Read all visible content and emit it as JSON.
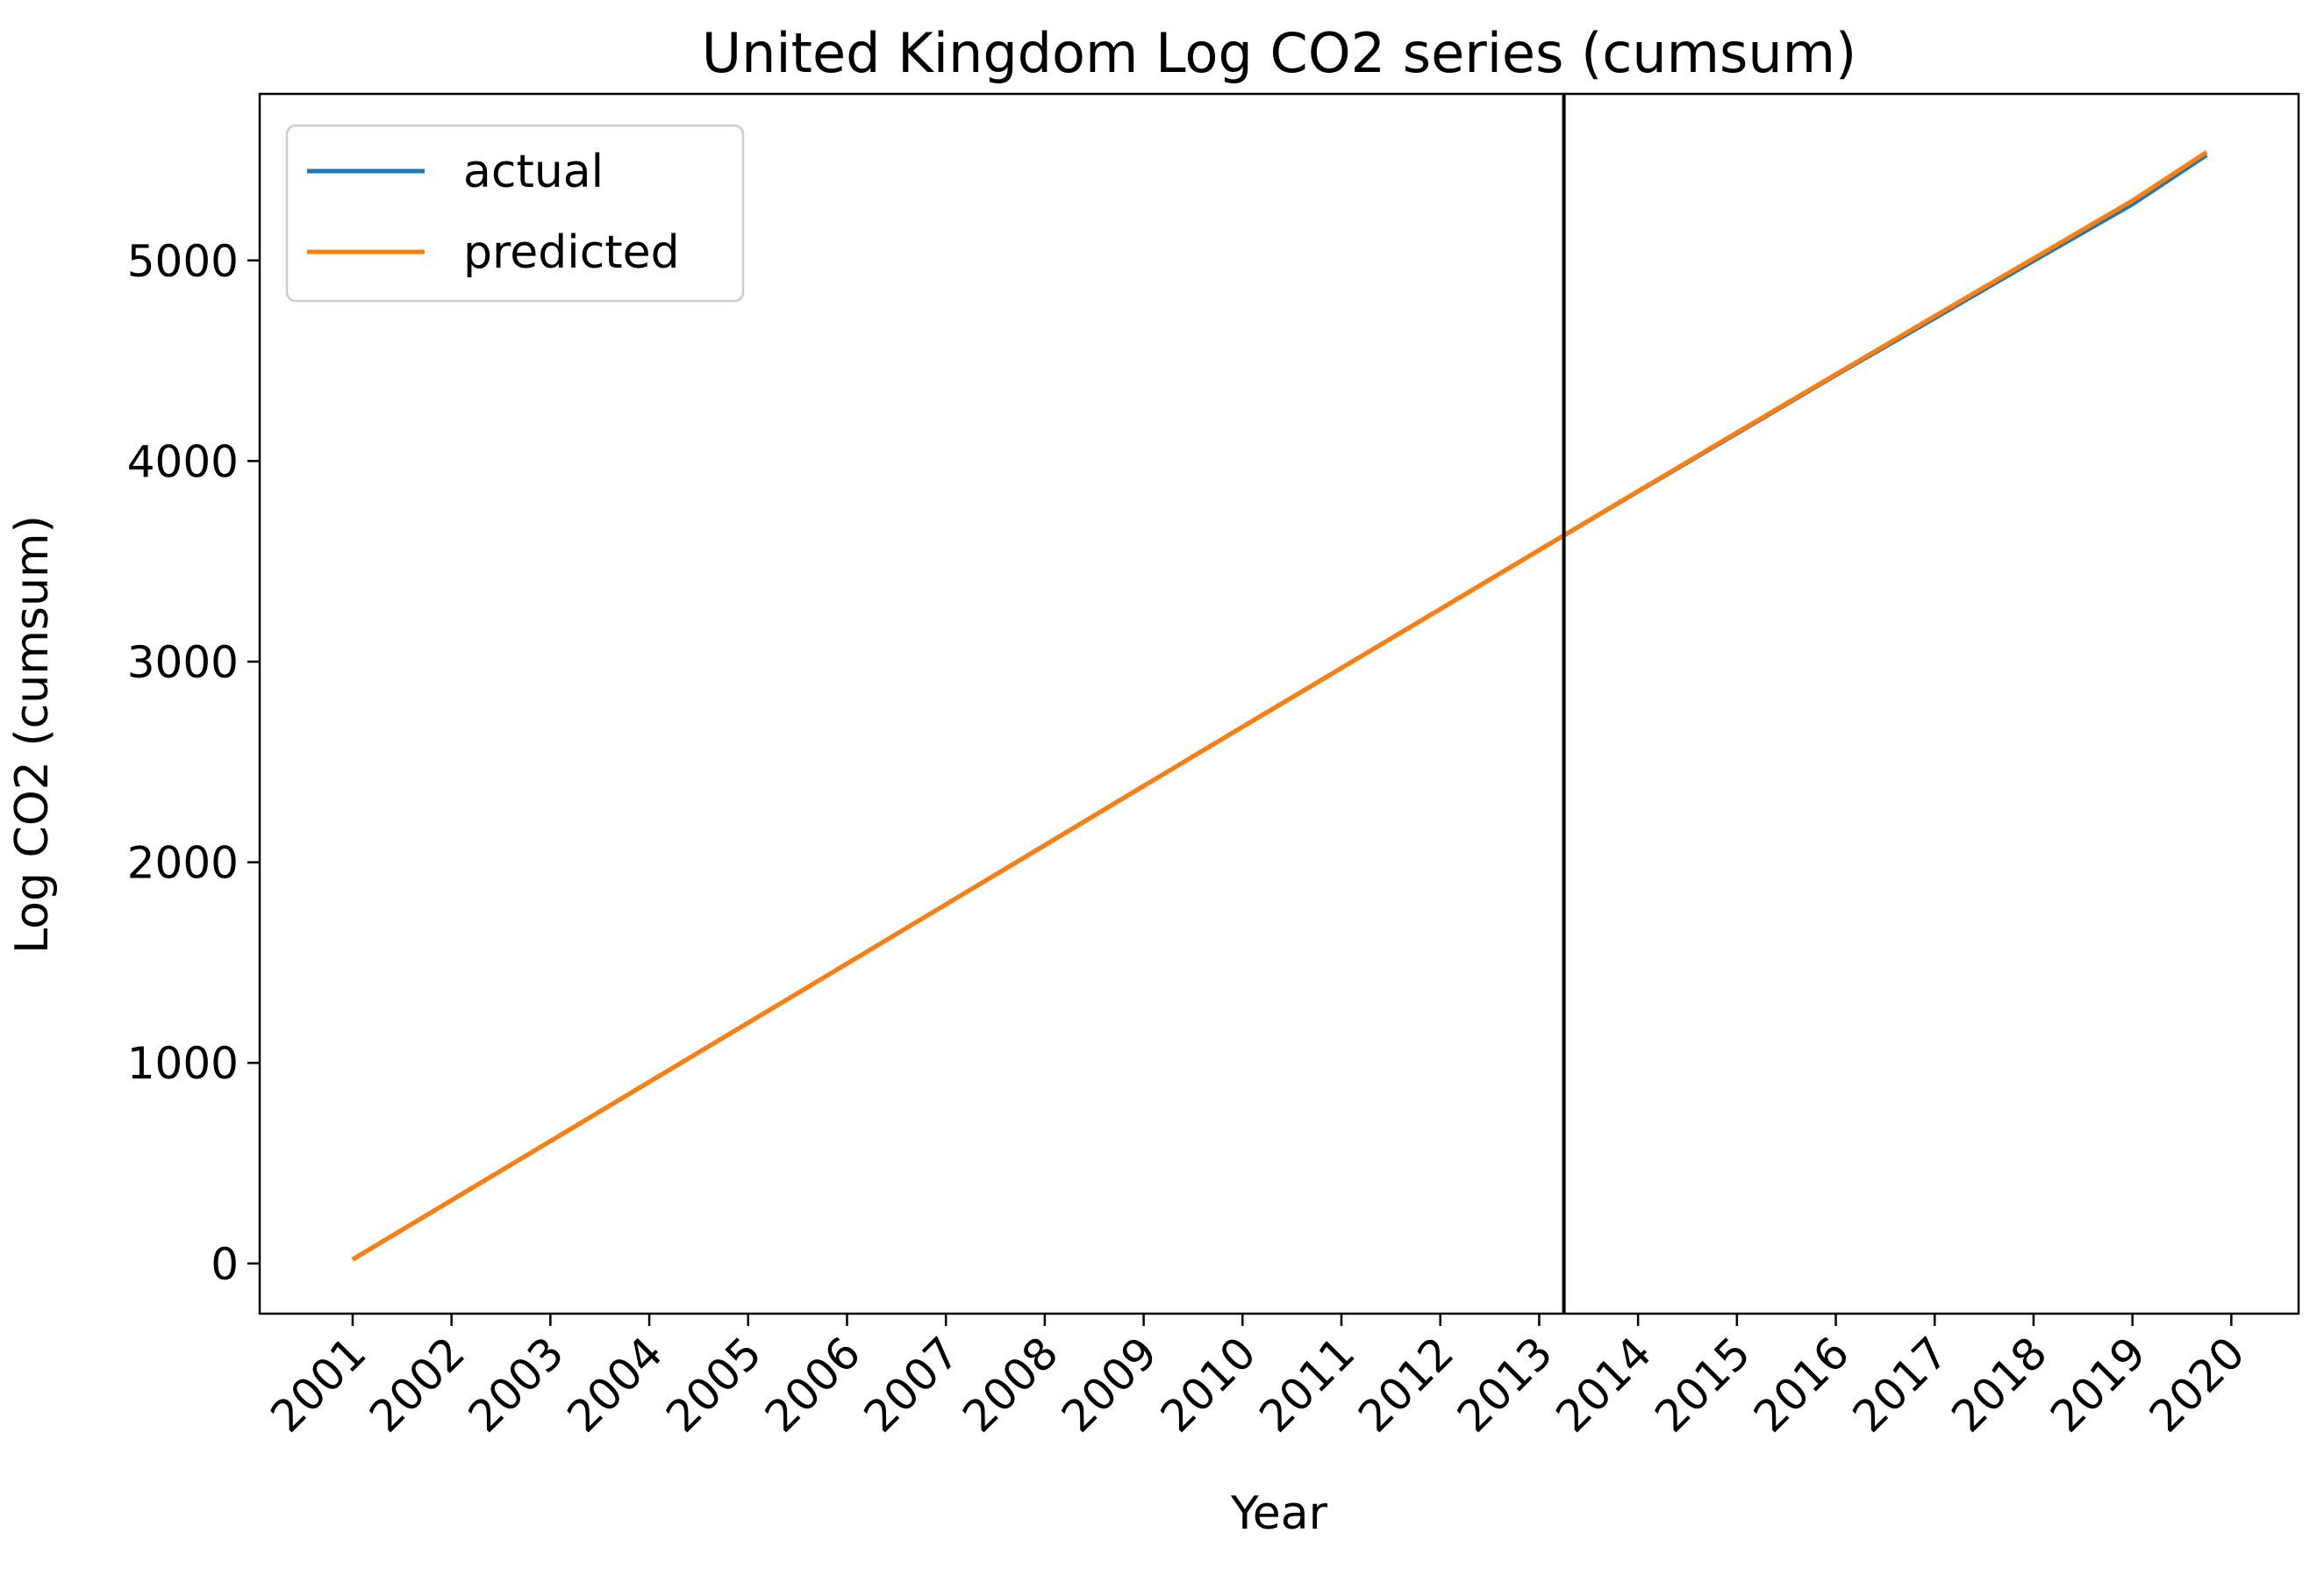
{
  "chart_data": {
    "type": "line",
    "title": "United Kingdom Log CO2 series (cumsum)",
    "xlabel": "Year",
    "ylabel": "Log CO2 (cumsum)",
    "xlim": [
      2000.06,
      2020.68
    ],
    "ylim": [
      -250,
      5830
    ],
    "xticks": [
      2001,
      2002,
      2003,
      2004,
      2005,
      2006,
      2007,
      2008,
      2009,
      2010,
      2011,
      2012,
      2013,
      2014,
      2015,
      2016,
      2017,
      2018,
      2019,
      2020
    ],
    "xtick_labels": [
      "2001",
      "2002",
      "2003",
      "2004",
      "2005",
      "2006",
      "2007",
      "2008",
      "2009",
      "2010",
      "2011",
      "2012",
      "2013",
      "2014",
      "2015",
      "2016",
      "2017",
      "2018",
      "2019",
      "2020"
    ],
    "yticks": [
      0,
      1000,
      2000,
      3000,
      4000,
      5000
    ],
    "ytick_labels": [
      "0",
      "1000",
      "2000",
      "3000",
      "4000",
      "5000"
    ],
    "legend_position": "top-left",
    "grid": false,
    "split_marker_x": 2013.25,
    "series": [
      {
        "name": "actual",
        "color": "#1f77b4",
        "x": [
          2001.0,
          2002.0,
          2003.0,
          2004.0,
          2005.0,
          2006.0,
          2007.0,
          2008.0,
          2009.0,
          2010.0,
          2011.0,
          2012.0,
          2013.0,
          2014.0,
          2015.0,
          2016.0,
          2017.0,
          2018.0,
          2019.0,
          2019.75
        ],
        "y": [
          20,
          315,
          610,
          905,
          1200,
          1495,
          1790,
          2085,
          2380,
          2675,
          2968,
          3262,
          3556,
          3848,
          4138,
          4428,
          4712,
          4998,
          5280,
          5525
        ]
      },
      {
        "name": "predicted",
        "color": "#ff7f0e",
        "x": [
          2001.0,
          2002.0,
          2003.0,
          2004.0,
          2005.0,
          2006.0,
          2007.0,
          2008.0,
          2009.0,
          2010.0,
          2011.0,
          2012.0,
          2013.0,
          2014.0,
          2015.0,
          2016.0,
          2017.0,
          2018.0,
          2019.0,
          2019.75
        ],
        "y": [
          20,
          315,
          610,
          905,
          1200,
          1495,
          1790,
          2085,
          2380,
          2675,
          2968,
          3262,
          3556,
          3850,
          4142,
          4432,
          4722,
          5010,
          5298,
          5540
        ]
      }
    ]
  }
}
